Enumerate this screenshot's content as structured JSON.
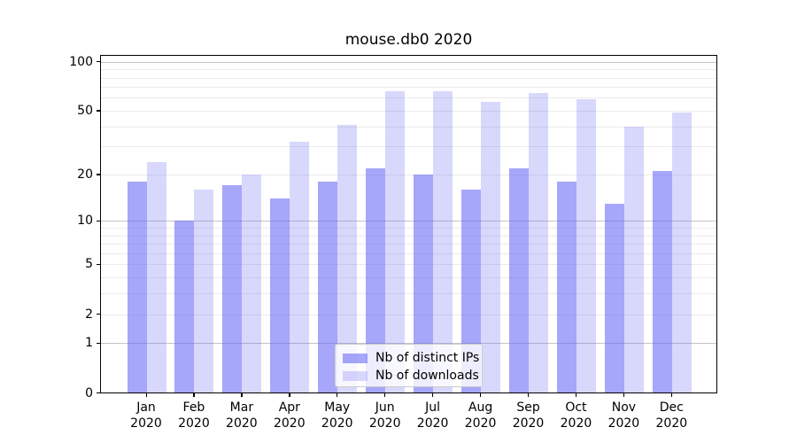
{
  "chart_data": {
    "type": "bar",
    "title": "mouse.db0 2020",
    "categories": [
      "Jan",
      "Feb",
      "Mar",
      "Apr",
      "May",
      "Jun",
      "Jul",
      "Aug",
      "Sep",
      "Oct",
      "Nov",
      "Dec"
    ],
    "category_year": "2020",
    "series": [
      {
        "name": "Nb of distinct IPs",
        "key": "distinct-ips",
        "color": "rgba(98,98,246,0.57)",
        "values": [
          18,
          10,
          17,
          14,
          18,
          22,
          20,
          16,
          22,
          18,
          13,
          21
        ]
      },
      {
        "name": "Nb of downloads",
        "key": "downloads",
        "color": "rgba(98,98,246,0.25)",
        "values": [
          24,
          16,
          20,
          32,
          41,
          66,
          66,
          57,
          64,
          59,
          40,
          49
        ]
      }
    ],
    "xlabel": "",
    "ylabel": "",
    "yscale": "log1p",
    "ylim": [
      0,
      110
    ],
    "y_ticks": [
      0,
      1,
      2,
      5,
      10,
      20,
      50,
      100
    ],
    "y_major_gridlines": [
      1,
      10,
      100
    ],
    "y_minor_gridlines": [
      2,
      3,
      4,
      5,
      6,
      7,
      8,
      9,
      20,
      30,
      40,
      50,
      60,
      70,
      80,
      90
    ],
    "grid": "both",
    "legend_position": "lower center"
  },
  "colors": {
    "background": "#ffffff",
    "major_grid": "#c4c4c4",
    "minor_grid": "#ebebeb",
    "axis": "#000000",
    "text": "#000000",
    "legend_border": "#cccccc",
    "legend_background": "rgba(255,255,255,0.8)",
    "bar_dark": "rgba(98,98,246,0.57)",
    "bar_light": "rgba(98,98,246,0.25)"
  }
}
